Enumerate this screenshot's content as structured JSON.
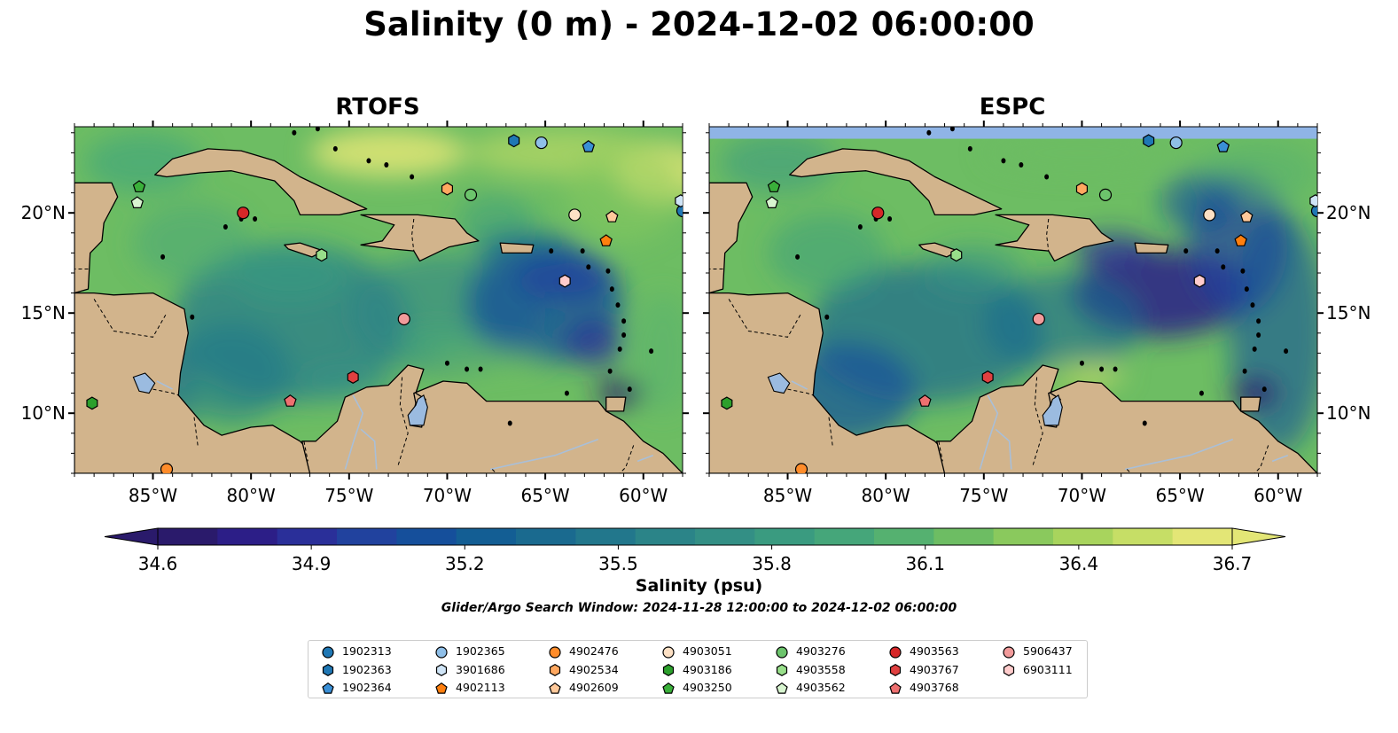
{
  "title": "Salinity (0 m) - 2024-12-02 06:00:00",
  "panels": [
    {
      "name": "RTOFS",
      "model": "rtofs"
    },
    {
      "name": "ESPC",
      "model": "espc"
    }
  ],
  "map": {
    "lon_range": [
      -89,
      -58
    ],
    "lat_range": [
      7,
      24.3
    ],
    "x_ticks": [
      {
        "value": -85,
        "label": "85°W"
      },
      {
        "value": -80,
        "label": "80°W"
      },
      {
        "value": -75,
        "label": "75°W"
      },
      {
        "value": -70,
        "label": "70°W"
      },
      {
        "value": -65,
        "label": "65°W"
      },
      {
        "value": -60,
        "label": "60°W"
      }
    ],
    "y_ticks": [
      {
        "value": 10,
        "label": "10°N"
      },
      {
        "value": 15,
        "label": "15°N"
      },
      {
        "value": 20,
        "label": "20°N"
      }
    ],
    "land_color": "#d2b48c",
    "lake_color": "#9bbbe0"
  },
  "colorbar": {
    "label": "Salinity (psu)",
    "min": 34.6,
    "max": 36.7,
    "extend": "both",
    "ticks": [
      {
        "value": 34.6,
        "label": "34.6"
      },
      {
        "value": 34.9,
        "label": "34.9"
      },
      {
        "value": 35.2,
        "label": "35.2"
      },
      {
        "value": 35.5,
        "label": "35.5"
      },
      {
        "value": 35.8,
        "label": "35.8"
      },
      {
        "value": 36.1,
        "label": "36.1"
      },
      {
        "value": 36.4,
        "label": "36.4"
      },
      {
        "value": 36.7,
        "label": "36.7"
      }
    ],
    "colors": [
      "#2a1a6b",
      "#2c1e87",
      "#2a2f99",
      "#21429e",
      "#154f9b",
      "#135e94",
      "#1a6a8f",
      "#22778c",
      "#2b8488",
      "#338f85",
      "#3a9b80",
      "#45a67a",
      "#55b170",
      "#6dbd63",
      "#8ac95d",
      "#a8d45d",
      "#c6de66",
      "#e3e676"
    ]
  },
  "search_window": "Glider/Argo Search Window: 2024-11-28 12:00:00 to 2024-12-02 06:00:00",
  "platforms": [
    {
      "id": "1902313",
      "marker": "circle",
      "color": "#1f77b4",
      "lon": -58.0,
      "lat": 20.1
    },
    {
      "id": "1902363",
      "marker": "hexagon",
      "color": "#1f77b4",
      "lon": -66.6,
      "lat": 23.6
    },
    {
      "id": "1902364",
      "marker": "pentagon",
      "color": "#3a8fd6",
      "lon": -62.8,
      "lat": 23.3
    },
    {
      "id": "1902365",
      "marker": "circle",
      "color": "#8fbfe8",
      "lon": -65.2,
      "lat": 23.5
    },
    {
      "id": "3901686",
      "marker": "hexagon",
      "color": "#cfe4f6",
      "lon": -58.1,
      "lat": 20.6
    },
    {
      "id": "4902113",
      "marker": "pentagon",
      "color": "#ff7f0e",
      "lon": -61.9,
      "lat": 18.6
    },
    {
      "id": "4902476",
      "marker": "circle",
      "color": "#ff8c2a",
      "lon": -84.3,
      "lat": 7.2
    },
    {
      "id": "4902534",
      "marker": "hexagon",
      "color": "#ffa860",
      "lon": -70.0,
      "lat": 21.2
    },
    {
      "id": "4902609",
      "marker": "pentagon",
      "color": "#ffc99a",
      "lon": -61.6,
      "lat": 19.8
    },
    {
      "id": "4903051",
      "marker": "circle",
      "color": "#fde0c4",
      "lon": -63.5,
      "lat": 19.9
    },
    {
      "id": "4903186",
      "marker": "hexagon",
      "color": "#2ca02c",
      "lon": -88.1,
      "lat": 10.5
    },
    {
      "id": "4903250",
      "marker": "pentagon",
      "color": "#3ab03a",
      "lon": -85.7,
      "lat": 21.3
    },
    {
      "id": "4903276",
      "marker": "circle",
      "color": "#6cc46c",
      "lon": -68.8,
      "lat": 20.9
    },
    {
      "id": "4903558",
      "marker": "hexagon",
      "color": "#98df8a",
      "lon": -76.4,
      "lat": 17.9
    },
    {
      "id": "4903562",
      "marker": "pentagon",
      "color": "#d8f5d0",
      "lon": -85.8,
      "lat": 20.5
    },
    {
      "id": "4903563",
      "marker": "circle",
      "color": "#d62728",
      "lon": -80.4,
      "lat": 20.0
    },
    {
      "id": "4903767",
      "marker": "hexagon",
      "color": "#e04040",
      "lon": -74.8,
      "lat": 11.8
    },
    {
      "id": "4903768",
      "marker": "pentagon",
      "color": "#ee7070",
      "lon": -78.0,
      "lat": 10.6
    },
    {
      "id": "5906437",
      "marker": "circle",
      "color": "#f29b9b",
      "lon": -72.2,
      "lat": 14.7
    },
    {
      "id": "6903111",
      "marker": "hexagon",
      "color": "#ffcccc",
      "lon": -64.0,
      "lat": 16.6
    }
  ]
}
